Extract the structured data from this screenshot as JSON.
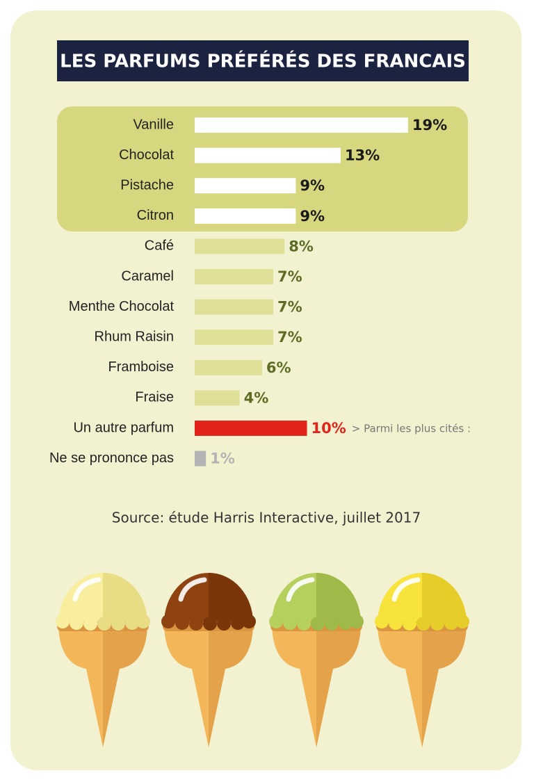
{
  "chart_data": {
    "type": "bar",
    "orientation": "horizontal",
    "title": "LES PARFUMS PRÉFÉRÉS DES FRANCAIS",
    "categories": [
      "Vanille",
      "Chocolat",
      "Pistache",
      "Citron",
      "Café",
      "Caramel",
      "Menthe Chocolat",
      "Rhum Raisin",
      "Framboise",
      "Fraise",
      "Un autre parfum",
      "Ne se prononce pas"
    ],
    "values": [
      19,
      13,
      9,
      9,
      8,
      7,
      7,
      7,
      6,
      4,
      10,
      1
    ],
    "value_labels": [
      "19%",
      "13%",
      "9%",
      "9%",
      "8%",
      "7%",
      "7%",
      "7%",
      "6%",
      "4%",
      "10%",
      "1%"
    ],
    "colors": [
      "#ffffff",
      "#ffffff",
      "#ffffff",
      "#ffffff",
      "#dfdf98",
      "#dfdf98",
      "#dfdf98",
      "#dfdf98",
      "#dfdf98",
      "#dfdf98",
      "#e2231a",
      "#b3b3b3"
    ],
    "label_colors": [
      "#1a1a1a",
      "#1a1a1a",
      "#1a1a1a",
      "#1a1a1a",
      "#5e6b25",
      "#5e6b25",
      "#5e6b25",
      "#5e6b25",
      "#5e6b25",
      "#5e6b25",
      "#e2231a",
      "#b3b3b3"
    ],
    "note": "> Parmi les plus cités :",
    "source": "Source: étude Harris Interactive, juillet 2017"
  }
}
